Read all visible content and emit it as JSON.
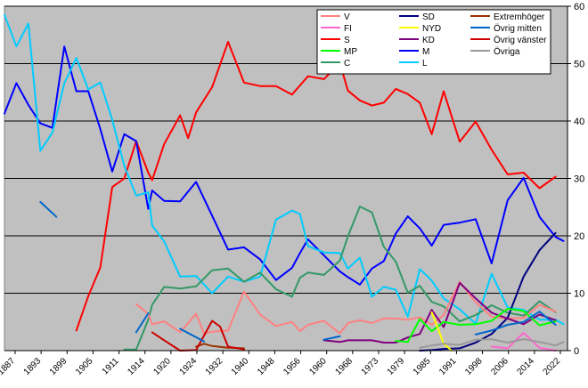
{
  "chart_data": {
    "type": "line",
    "title": "",
    "xlabel": "",
    "ylabel": "",
    "ylim": [
      0,
      60
    ],
    "yticks": [
      0,
      10,
      20,
      30,
      40,
      50,
      60
    ],
    "xticks": [
      "1887",
      "1893",
      "1899",
      "1905",
      "1911",
      "1914",
      "1920",
      "1924",
      "1932",
      "1940",
      "1948",
      "1956",
      "1960",
      "1968",
      "1973",
      "1979",
      "1985",
      "1991",
      "1998",
      "2006",
      "2014",
      "2022"
    ],
    "xlim": [
      1884,
      2025
    ],
    "grid": true,
    "legend_position": "top-center",
    "colors": {
      "plot_background": "#c0c0c0",
      "gridline": "#000000",
      "V": "#ff8080",
      "FI": "#ff66cc",
      "S": "#ff0000",
      "MP": "#00ff00",
      "C": "#339966",
      "SD": "#000080",
      "NYD": "#ffff00",
      "KD": "#800080",
      "M": "#0000ff",
      "Extremhoger": "#993300",
      "OvrigMitten": "#0066cc",
      "OvrigVanster": "#cc0000",
      "Ovriga": "#999999",
      "L": "#00ccff"
    },
    "legend": [
      [
        "V",
        "SD",
        "Extremhöger"
      ],
      [
        "FI",
        "NYD",
        "Övrig mitten"
      ],
      [
        "S",
        "KD",
        "Övrig vänster"
      ],
      [
        "MP",
        "M",
        "Övriga"
      ],
      [
        "C",
        "L",
        ""
      ]
    ],
    "series": [
      {
        "name": "S",
        "color": "#ff0000",
        "points": [
          [
            1902,
            3.5
          ],
          [
            1905,
            9.5
          ],
          [
            1908,
            14.5
          ],
          [
            1911,
            28.5
          ],
          [
            1914,
            30.0
          ],
          [
            1917,
            36.5
          ],
          [
            1920,
            31.0
          ],
          [
            1921,
            29.7
          ],
          [
            1924,
            36.0
          ],
          [
            1928,
            41.0
          ],
          [
            1930,
            37.0
          ],
          [
            1932,
            41.5
          ],
          [
            1936,
            45.9
          ],
          [
            1940,
            53.8
          ],
          [
            1944,
            46.7
          ],
          [
            1948,
            46.1
          ],
          [
            1952,
            46.1
          ],
          [
            1956,
            44.6
          ],
          [
            1958,
            46.2
          ],
          [
            1960,
            47.8
          ],
          [
            1964,
            47.3
          ],
          [
            1968,
            50.1
          ],
          [
            1970,
            45.3
          ],
          [
            1973,
            43.6
          ],
          [
            1976,
            42.7
          ],
          [
            1979,
            43.2
          ],
          [
            1982,
            45.6
          ],
          [
            1985,
            44.7
          ],
          [
            1988,
            43.2
          ],
          [
            1991,
            37.7
          ],
          [
            1994,
            45.2
          ],
          [
            1998,
            36.4
          ],
          [
            2002,
            39.9
          ],
          [
            2006,
            35.0
          ],
          [
            2010,
            30.7
          ],
          [
            2014,
            31.0
          ],
          [
            2018,
            28.3
          ],
          [
            2022,
            30.3
          ]
        ]
      },
      {
        "name": "M",
        "color": "#0000ff",
        "points": [
          [
            1884,
            41.3
          ],
          [
            1887,
            46.6
          ],
          [
            1890,
            42.8
          ],
          [
            1893,
            39.6
          ],
          [
            1896,
            38.8
          ],
          [
            1899,
            53.0
          ],
          [
            1902,
            45.2
          ],
          [
            1905,
            45.2
          ],
          [
            1908,
            38.6
          ],
          [
            1911,
            31.2
          ],
          [
            1914,
            37.7
          ],
          [
            1917,
            36.5
          ],
          [
            1920,
            24.7
          ],
          [
            1921,
            27.9
          ],
          [
            1924,
            26.1
          ],
          [
            1928,
            26.0
          ],
          [
            1932,
            29.4
          ],
          [
            1936,
            23.5
          ],
          [
            1940,
            17.6
          ],
          [
            1944,
            18.0
          ],
          [
            1948,
            15.9
          ],
          [
            1952,
            12.3
          ],
          [
            1956,
            14.4
          ],
          [
            1958,
            17.0
          ],
          [
            1960,
            19.4
          ],
          [
            1964,
            16.6
          ],
          [
            1968,
            13.8
          ],
          [
            1970,
            12.8
          ],
          [
            1973,
            11.5
          ],
          [
            1976,
            14.3
          ],
          [
            1979,
            15.6
          ],
          [
            1982,
            20.4
          ],
          [
            1985,
            23.4
          ],
          [
            1988,
            21.3
          ],
          [
            1991,
            18.3
          ],
          [
            1994,
            21.9
          ],
          [
            1998,
            22.3
          ],
          [
            2002,
            22.9
          ],
          [
            2006,
            15.2
          ],
          [
            2010,
            26.2
          ],
          [
            2014,
            30.1
          ],
          [
            2018,
            23.3
          ],
          [
            2022,
            19.8
          ],
          [
            2024,
            19.1
          ]
        ]
      },
      {
        "name": "L",
        "color": "#00ccff",
        "points": [
          [
            1884,
            58.5
          ],
          [
            1887,
            53.0
          ],
          [
            1890,
            57.0
          ],
          [
            1893,
            34.8
          ],
          [
            1896,
            38.0
          ],
          [
            1899,
            46.6
          ],
          [
            1902,
            51.0
          ],
          [
            1905,
            45.5
          ],
          [
            1908,
            46.7
          ],
          [
            1911,
            40.2
          ],
          [
            1914,
            32.2
          ],
          [
            1917,
            27.0
          ],
          [
            1920,
            27.6
          ],
          [
            1921,
            21.8
          ],
          [
            1924,
            19.0
          ],
          [
            1928,
            12.9
          ],
          [
            1932,
            13.0
          ],
          [
            1936,
            10.0
          ],
          [
            1940,
            12.9
          ],
          [
            1944,
            12.0
          ],
          [
            1948,
            12.9
          ],
          [
            1952,
            22.8
          ],
          [
            1956,
            24.4
          ],
          [
            1958,
            23.8
          ],
          [
            1960,
            18.2
          ],
          [
            1964,
            17.1
          ],
          [
            1968,
            17.0
          ],
          [
            1970,
            14.3
          ],
          [
            1973,
            16.2
          ],
          [
            1976,
            9.4
          ],
          [
            1979,
            11.1
          ],
          [
            1982,
            10.6
          ],
          [
            1985,
            5.9
          ],
          [
            1988,
            14.2
          ],
          [
            1991,
            12.2
          ],
          [
            1994,
            9.1
          ],
          [
            1998,
            7.2
          ],
          [
            2002,
            4.7
          ],
          [
            2006,
            13.4
          ],
          [
            2010,
            7.5
          ],
          [
            2014,
            7.1
          ],
          [
            2018,
            5.4
          ],
          [
            2022,
            5.4
          ],
          [
            2024,
            4.6
          ]
        ]
      },
      {
        "name": "C",
        "color": "#339966",
        "points": [
          [
            1914,
            0.2
          ],
          [
            1917,
            0.2
          ],
          [
            1920,
            5.4
          ],
          [
            1921,
            8.0
          ],
          [
            1924,
            11.1
          ],
          [
            1928,
            10.8
          ],
          [
            1932,
            11.2
          ],
          [
            1936,
            14.0
          ],
          [
            1940,
            14.3
          ],
          [
            1944,
            12.0
          ],
          [
            1948,
            13.6
          ],
          [
            1952,
            10.7
          ],
          [
            1956,
            9.4
          ],
          [
            1958,
            12.7
          ],
          [
            1960,
            13.6
          ],
          [
            1964,
            13.2
          ],
          [
            1968,
            15.7
          ],
          [
            1970,
            19.9
          ],
          [
            1973,
            25.1
          ],
          [
            1976,
            24.1
          ],
          [
            1979,
            18.1
          ],
          [
            1982,
            15.5
          ],
          [
            1985,
            10.1
          ],
          [
            1988,
            11.3
          ],
          [
            1991,
            8.5
          ],
          [
            1994,
            7.7
          ],
          [
            1998,
            5.1
          ],
          [
            2002,
            6.2
          ],
          [
            2006,
            7.9
          ],
          [
            2010,
            6.6
          ],
          [
            2014,
            6.1
          ],
          [
            2018,
            8.6
          ],
          [
            2022,
            6.7
          ]
        ]
      },
      {
        "name": "V",
        "color": "#ff8080",
        "points": [
          [
            1917,
            8.1
          ],
          [
            1920,
            6.4
          ],
          [
            1921,
            4.6
          ],
          [
            1924,
            5.1
          ],
          [
            1928,
            3.2
          ],
          [
            1932,
            6.4
          ],
          [
            1934,
            3.0
          ],
          [
            1936,
            3.3
          ],
          [
            1940,
            3.5
          ],
          [
            1944,
            10.3
          ],
          [
            1948,
            6.3
          ],
          [
            1952,
            4.3
          ],
          [
            1956,
            5.0
          ],
          [
            1958,
            3.4
          ],
          [
            1960,
            4.5
          ],
          [
            1964,
            5.2
          ],
          [
            1968,
            3.0
          ],
          [
            1970,
            4.8
          ],
          [
            1973,
            5.3
          ],
          [
            1976,
            4.8
          ],
          [
            1979,
            5.6
          ],
          [
            1982,
            5.6
          ],
          [
            1985,
            5.4
          ],
          [
            1988,
            5.8
          ],
          [
            1991,
            4.5
          ],
          [
            1994,
            6.2
          ],
          [
            1998,
            12.0
          ],
          [
            2002,
            8.4
          ],
          [
            2006,
            5.9
          ],
          [
            2010,
            5.6
          ],
          [
            2014,
            5.7
          ],
          [
            2018,
            8.0
          ],
          [
            2022,
            6.8
          ]
        ]
      },
      {
        "name": "SD",
        "color": "#000080",
        "points": [
          [
            1988,
            0.0
          ],
          [
            1991,
            0.1
          ],
          [
            1994,
            0.3
          ],
          [
            1998,
            0.4
          ],
          [
            2002,
            1.4
          ],
          [
            2006,
            2.9
          ],
          [
            2010,
            5.7
          ],
          [
            2014,
            12.9
          ],
          [
            2018,
            17.5
          ],
          [
            2022,
            20.5
          ]
        ]
      },
      {
        "name": "KD",
        "color": "#800080",
        "points": [
          [
            1964,
            1.8
          ],
          [
            1968,
            1.5
          ],
          [
            1970,
            1.8
          ],
          [
            1973,
            1.8
          ],
          [
            1976,
            1.8
          ],
          [
            1979,
            1.4
          ],
          [
            1982,
            1.4
          ],
          [
            1985,
            2.3
          ],
          [
            1988,
            2.9
          ],
          [
            1991,
            7.1
          ],
          [
            1994,
            4.1
          ],
          [
            1998,
            11.8
          ],
          [
            2002,
            9.1
          ],
          [
            2006,
            6.6
          ],
          [
            2010,
            5.6
          ],
          [
            2014,
            4.6
          ],
          [
            2018,
            6.3
          ],
          [
            2022,
            5.3
          ]
        ]
      },
      {
        "name": "MP",
        "color": "#00ff00",
        "points": [
          [
            1982,
            1.7
          ],
          [
            1985,
            1.5
          ],
          [
            1988,
            5.5
          ],
          [
            1991,
            3.4
          ],
          [
            1994,
            5.0
          ],
          [
            1998,
            4.5
          ],
          [
            2002,
            4.6
          ],
          [
            2006,
            5.2
          ],
          [
            2010,
            7.3
          ],
          [
            2014,
            6.9
          ],
          [
            2018,
            4.4
          ],
          [
            2022,
            5.1
          ]
        ]
      },
      {
        "name": "NYD",
        "color": "#ffff00",
        "points": [
          [
            1991,
            6.7
          ],
          [
            1994,
            1.2
          ],
          [
            1996,
            0.0
          ]
        ]
      },
      {
        "name": "FI",
        "color": "#ff66cc",
        "points": [
          [
            2006,
            0.7
          ],
          [
            2010,
            0.4
          ],
          [
            2014,
            3.1
          ],
          [
            2018,
            0.5
          ],
          [
            2022,
            0.0
          ]
        ]
      },
      {
        "name": "Övriga",
        "color": "#999999",
        "points": [
          [
            1988,
            0.5
          ],
          [
            1991,
            0.9
          ],
          [
            1994,
            1.2
          ],
          [
            1998,
            1.0
          ],
          [
            2002,
            1.9
          ],
          [
            2006,
            2.0
          ],
          [
            2010,
            1.4
          ],
          [
            2014,
            2.0
          ],
          [
            2018,
            1.5
          ],
          [
            2022,
            0.9
          ],
          [
            2024,
            1.5
          ]
        ]
      },
      {
        "name": "Extremhöger",
        "color": "#993300",
        "points": [
          [
            1932,
            0.7
          ],
          [
            1934,
            1.2
          ],
          [
            1936,
            0.8
          ],
          [
            1940,
            0.5
          ],
          [
            1944,
            0.4
          ]
        ]
      },
      {
        "name": "Övrig vänster",
        "color": "#cc0000",
        "points": [
          [
            1921,
            3.2
          ],
          [
            1924,
            1.8
          ],
          [
            1928,
            0.0
          ],
          [
            1932,
            0.1
          ],
          [
            1936,
            5.2
          ],
          [
            1938,
            4.2
          ],
          [
            1940,
            0.7
          ],
          [
            1944,
            0.2
          ]
        ]
      },
      {
        "name": "Övrig mitten",
        "color": "#0066cc",
        "points": [
          [
            1893,
            25.9
          ],
          [
            1897,
            23.3
          ]
        ]
      },
      {
        "name": "Övrig mitten",
        "color": "#0066cc",
        "points": [
          [
            1917,
            3.2
          ],
          [
            1920,
            6.5
          ]
        ]
      },
      {
        "name": "Övrig mitten",
        "color": "#0066cc",
        "points": [
          [
            1928,
            3.8
          ],
          [
            1934,
            1.6
          ]
        ]
      },
      {
        "name": "Övrig mitten",
        "color": "#0066cc",
        "points": [
          [
            1964,
            1.9
          ],
          [
            1968,
            2.5
          ]
        ]
      },
      {
        "name": "Övrig mitten",
        "color": "#0066cc",
        "points": [
          [
            2002,
            2.8
          ],
          [
            2006,
            3.5
          ],
          [
            2010,
            4.5
          ],
          [
            2014,
            5.0
          ],
          [
            2018,
            6.8
          ],
          [
            2022,
            4.5
          ]
        ]
      }
    ]
  }
}
